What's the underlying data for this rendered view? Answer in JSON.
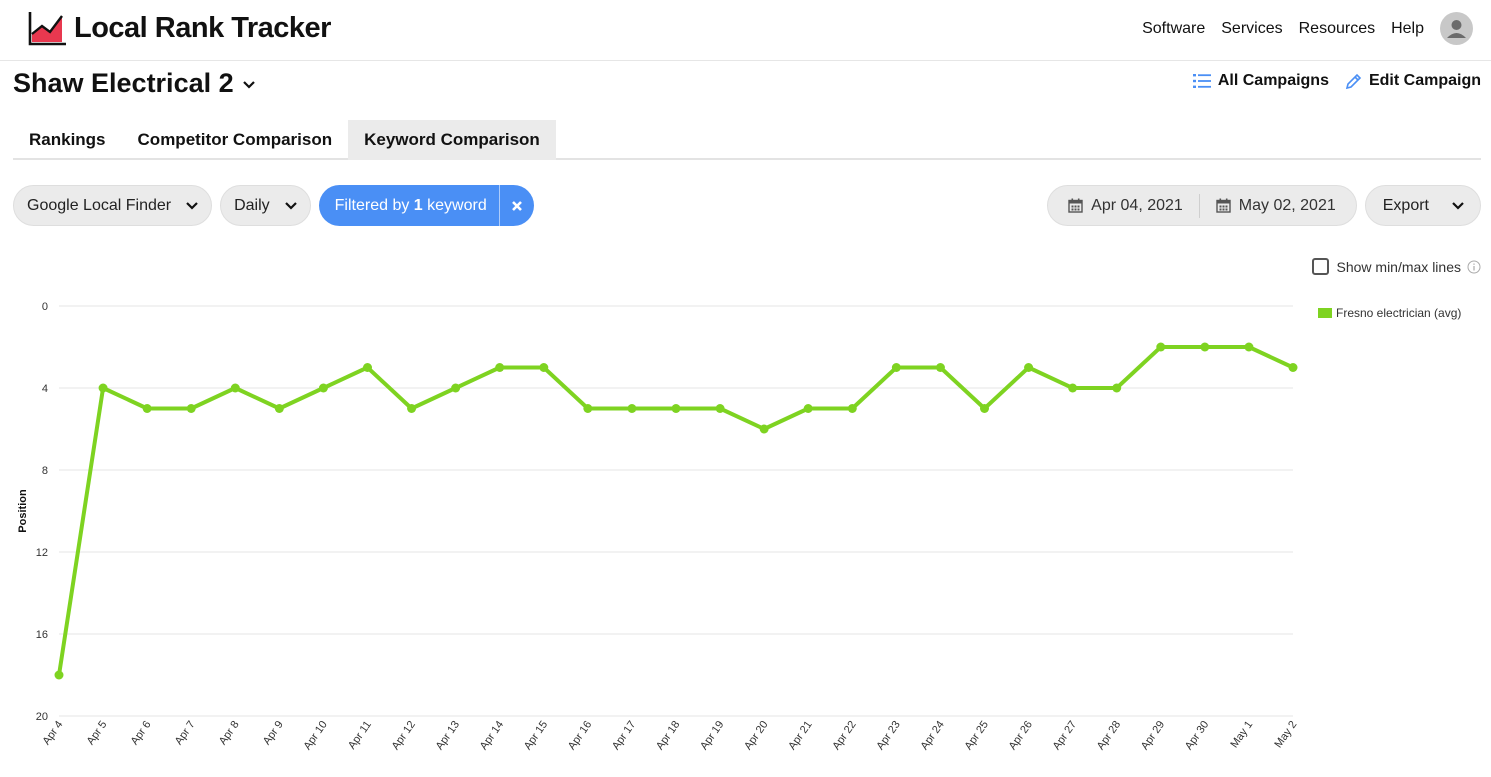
{
  "app": {
    "name": "Local Rank Tracker"
  },
  "nav": {
    "items": [
      "Software",
      "Services",
      "Resources",
      "Help"
    ]
  },
  "campaign": {
    "title": "Shaw Electrical 2",
    "all_campaigns_label": "All Campaigns",
    "edit_campaign_label": "Edit Campaign"
  },
  "tabs": [
    {
      "label": "Rankings",
      "active": false
    },
    {
      "label": "Competitor Comparison",
      "active": false
    },
    {
      "label": "Keyword Comparison",
      "active": true
    }
  ],
  "filters": {
    "engine": "Google Local Finder",
    "frequency": "Daily",
    "keyword_filter_prefix": "Filtered by ",
    "keyword_filter_count": "1",
    "keyword_filter_suffix": " keyword"
  },
  "date_range": {
    "start": "Apr 04, 2021",
    "end": "May 02, 2021"
  },
  "export_label": "Export",
  "show_minmax_label": "Show min/max lines",
  "show_minmax_checked": false,
  "colors": {
    "accent": "#4a8ff5",
    "series": "#7ed321",
    "grid": "#e5e5e5"
  },
  "icons": [
    "logo-chart-icon",
    "user-avatar-icon",
    "chevron-down-icon",
    "list-icon",
    "pencil-icon",
    "close-icon",
    "calendar-icon",
    "info-icon"
  ],
  "chart_data": {
    "type": "line",
    "ylabel": "Position",
    "ylim": [
      20,
      0
    ],
    "y_inverted": true,
    "yticks": [
      0,
      4,
      8,
      12,
      16,
      20
    ],
    "grid": true,
    "legend_position": "right",
    "categories": [
      "Apr 4",
      "Apr 5",
      "Apr 6",
      "Apr 7",
      "Apr 8",
      "Apr 9",
      "Apr 10",
      "Apr 11",
      "Apr 12",
      "Apr 13",
      "Apr 14",
      "Apr 15",
      "Apr 16",
      "Apr 17",
      "Apr 18",
      "Apr 19",
      "Apr 20",
      "Apr 21",
      "Apr 22",
      "Apr 23",
      "Apr 24",
      "Apr 25",
      "Apr 26",
      "Apr 27",
      "Apr 28",
      "Apr 29",
      "Apr 30",
      "May 1",
      "May 2"
    ],
    "series": [
      {
        "name": "Fresno electrician (avg)",
        "color": "#7ed321",
        "values": [
          18,
          4,
          5,
          5,
          4,
          5,
          4,
          3,
          5,
          4,
          3,
          3,
          5,
          5,
          5,
          5,
          6,
          5,
          5,
          3,
          3,
          5,
          3,
          4,
          4,
          2,
          2,
          2,
          3
        ]
      }
    ]
  }
}
